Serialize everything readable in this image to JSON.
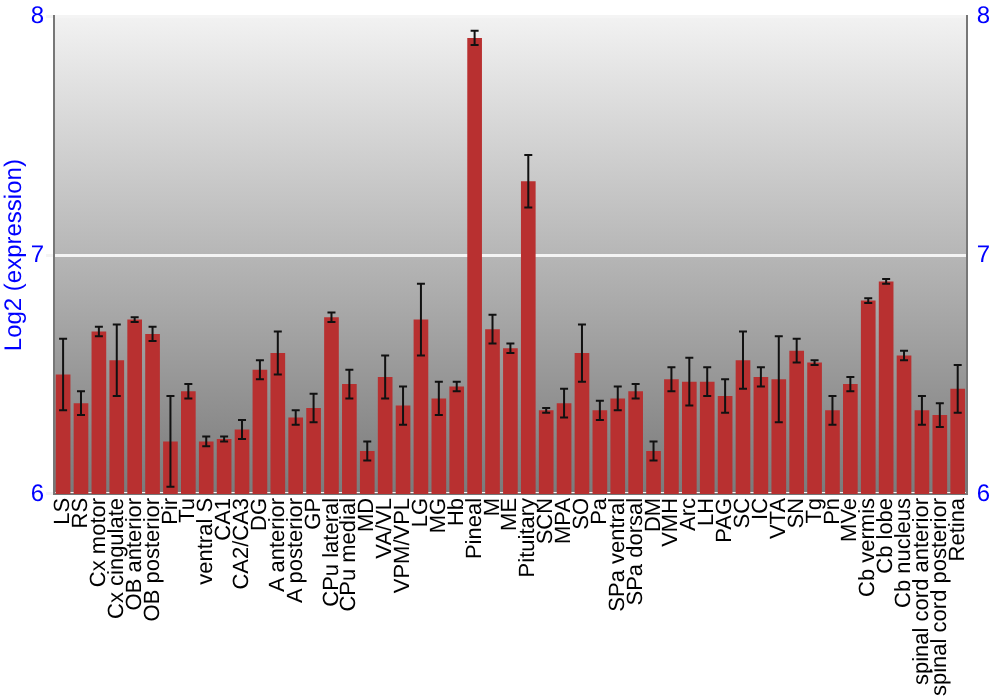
{
  "chart_data": {
    "type": "bar",
    "ylabel": "Log2 (expression)",
    "categories": [
      "LS",
      "RS",
      "Cx motor",
      "Cx cingulate",
      "OB anterior",
      "OB posterior",
      "Pir",
      "Tu",
      "ventral S",
      "CA1",
      "CA2/CA3",
      "DG",
      "A anterior",
      "A posterior",
      "GP",
      "CPu lateral",
      "CPu medial",
      "MD",
      "VA/VL",
      "VPM/VPL",
      "LG",
      "MG",
      "Hb",
      "Pineal",
      "M",
      "ME",
      "Pituitary",
      "SCN",
      "MPA",
      "SO",
      "Pa",
      "SPa ventral",
      "SPa dorsal",
      "DM",
      "VMH",
      "Arc",
      "LH",
      "PAG",
      "SC",
      "IC",
      "VTA",
      "SN",
      "Tg",
      "Pn",
      "MVe",
      "Cb vermis",
      "Cb lobe",
      "Cb nucleus",
      "spinal cord anterior",
      "spinal cord posterior",
      "Retina"
    ],
    "values": [
      6.5,
      6.38,
      6.68,
      6.56,
      6.73,
      6.67,
      6.22,
      6.43,
      6.22,
      6.23,
      6.27,
      6.52,
      6.59,
      6.32,
      6.36,
      6.74,
      6.46,
      6.18,
      6.49,
      6.37,
      6.73,
      6.4,
      6.45,
      7.91,
      6.69,
      6.61,
      7.31,
      6.35,
      6.38,
      6.59,
      6.35,
      6.4,
      6.43,
      6.18,
      6.48,
      6.47,
      6.47,
      6.41,
      6.56,
      6.49,
      6.48,
      6.6,
      6.55,
      6.35,
      6.46,
      6.81,
      6.89,
      6.58,
      6.35,
      6.33,
      6.44
    ],
    "errors": [
      0.15,
      0.05,
      0.02,
      0.15,
      0.01,
      0.03,
      0.19,
      0.03,
      0.02,
      0.01,
      0.04,
      0.04,
      0.09,
      0.03,
      0.06,
      0.02,
      0.06,
      0.04,
      0.09,
      0.08,
      0.15,
      0.07,
      0.02,
      0.03,
      0.06,
      0.02,
      0.11,
      0.01,
      0.06,
      0.12,
      0.04,
      0.05,
      0.03,
      0.04,
      0.05,
      0.1,
      0.06,
      0.07,
      0.12,
      0.04,
      0.18,
      0.05,
      0.01,
      0.06,
      0.03,
      0.01,
      0.01,
      0.02,
      0.06,
      0.05,
      0.1
    ],
    "color": "#b83030",
    "ylim": [
      6,
      8
    ],
    "yticks": [
      6,
      7,
      8
    ],
    "y2lim": [
      6,
      8
    ],
    "y2ticks": [
      6,
      7,
      8
    ],
    "grid": "y"
  }
}
